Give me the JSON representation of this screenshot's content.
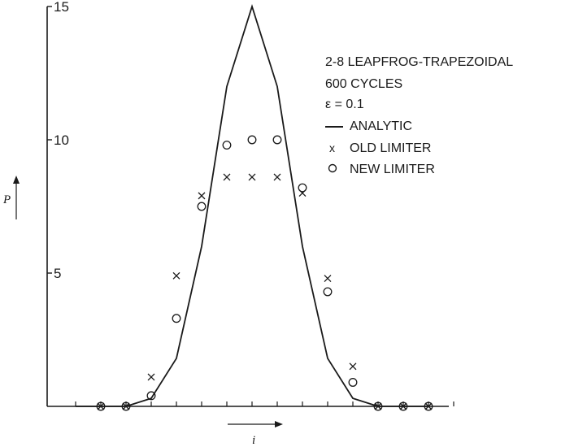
{
  "chart_data": {
    "type": "line",
    "legend_title_lines": [
      "2-8 LEAPFROG-TRAPEZOIDAL",
      "600 CYCLES",
      "ε = 0.1"
    ],
    "legend_placement": "top-right",
    "xlabel": "i",
    "ylabel": "P",
    "ylim": [
      0,
      15
    ],
    "y_ticks": [
      5,
      10,
      15
    ],
    "y_tick_labels": [
      "5",
      "10",
      "15"
    ],
    "x_tick_count": 16,
    "grid": false,
    "series": [
      {
        "name": "ANALYTIC",
        "marker": "line",
        "x": [
          0,
          1,
          2,
          3,
          4,
          5,
          6,
          7,
          8,
          9,
          10,
          11,
          12,
          13,
          14
        ],
        "y": [
          0,
          0,
          0,
          0.3,
          1.8,
          6,
          12,
          15,
          12,
          6,
          1.8,
          0.3,
          0,
          0,
          0
        ]
      },
      {
        "name": "OLD LIMITER",
        "marker": "x",
        "x": [
          1,
          2,
          3,
          4,
          5,
          6,
          7,
          8,
          9,
          10,
          11,
          12,
          13,
          14
        ],
        "y": [
          0,
          0,
          1.1,
          4.9,
          7.9,
          8.6,
          8.6,
          8.6,
          8.0,
          4.8,
          1.5,
          0,
          0,
          0
        ]
      },
      {
        "name": "NEW LIMITER",
        "marker": "o",
        "x": [
          1,
          2,
          3,
          4,
          5,
          6,
          7,
          8,
          9,
          10,
          11,
          12,
          13,
          14
        ],
        "y": [
          0,
          0,
          0.4,
          3.3,
          7.5,
          9.8,
          10.0,
          10.0,
          8.2,
          4.3,
          0.9,
          0,
          0,
          0
        ]
      }
    ],
    "colors": {
      "ink": "#1a1a1a",
      "background": "#ffffff"
    }
  }
}
